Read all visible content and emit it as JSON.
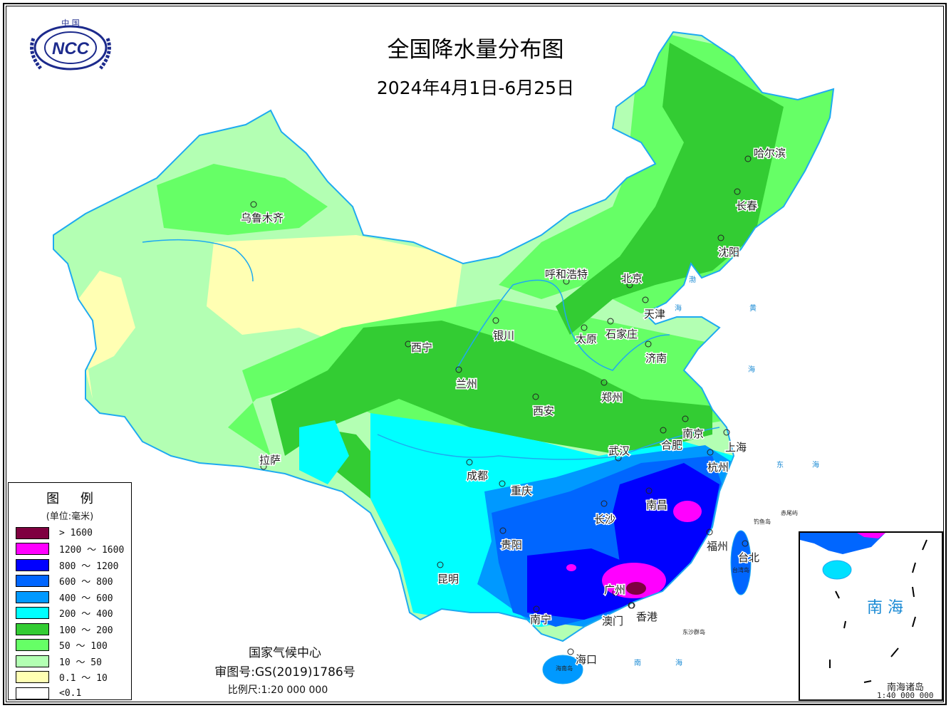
{
  "logo": {
    "text": "NCC",
    "top_text": "中 国"
  },
  "header": {
    "title": "全国降水量分布图",
    "subtitle": "2024年4月1日-6月25日"
  },
  "legend": {
    "title": "图 例",
    "unit": "(单位:毫米)",
    "items": [
      {
        "label": "> 1600",
        "color": "#7f0040"
      },
      {
        "label": "1200 ～ 1600",
        "color": "#ff00ff"
      },
      {
        "label": "800 ～ 1200",
        "color": "#0000ff"
      },
      {
        "label": "600 ～ 800",
        "color": "#0066ff"
      },
      {
        "label": "400 ～ 600",
        "color": "#0099ff"
      },
      {
        "label": "200 ～ 400",
        "color": "#00ffff"
      },
      {
        "label": "100 ～ 200",
        "color": "#33cc33"
      },
      {
        "label": "50 ～ 100",
        "color": "#66ff66"
      },
      {
        "label": "10 ～ 50",
        "color": "#b3ffb3"
      },
      {
        "label": "0.1 ～ 10",
        "color": "#ffffb3"
      },
      {
        "label": "<0.1",
        "color": "#ffffff"
      }
    ]
  },
  "cities": [
    "乌鲁木齐",
    "哈尔滨",
    "长春",
    "沈阳",
    "呼和浩特",
    "北京",
    "天津",
    "石家庄",
    "太原",
    "济南",
    "银川",
    "西宁",
    "兰州",
    "郑州",
    "西安",
    "南京",
    "合肥",
    "上海",
    "武汉",
    "杭州",
    "拉萨",
    "成都",
    "重庆",
    "南昌",
    "长沙",
    "福州",
    "台北",
    "贵阳",
    "昆明",
    "广州",
    "南宁",
    "澳门",
    "香港",
    "海口"
  ],
  "seas": [
    "渤",
    "海",
    "黄",
    "海",
    "东",
    "海",
    "南",
    "海"
  ],
  "islands": [
    "钓鱼岛",
    "赤尾屿",
    "台湾岛",
    "海南岛",
    "东沙群岛"
  ],
  "footer": {
    "agency": "国家气候中心",
    "approval": "审图号:GS(2019)1786号",
    "scale": "比例尺:1:20 000 000"
  },
  "inset": {
    "sea_label": "南 海",
    "title": "南海诸岛",
    "scale": "1:40 000 000"
  }
}
